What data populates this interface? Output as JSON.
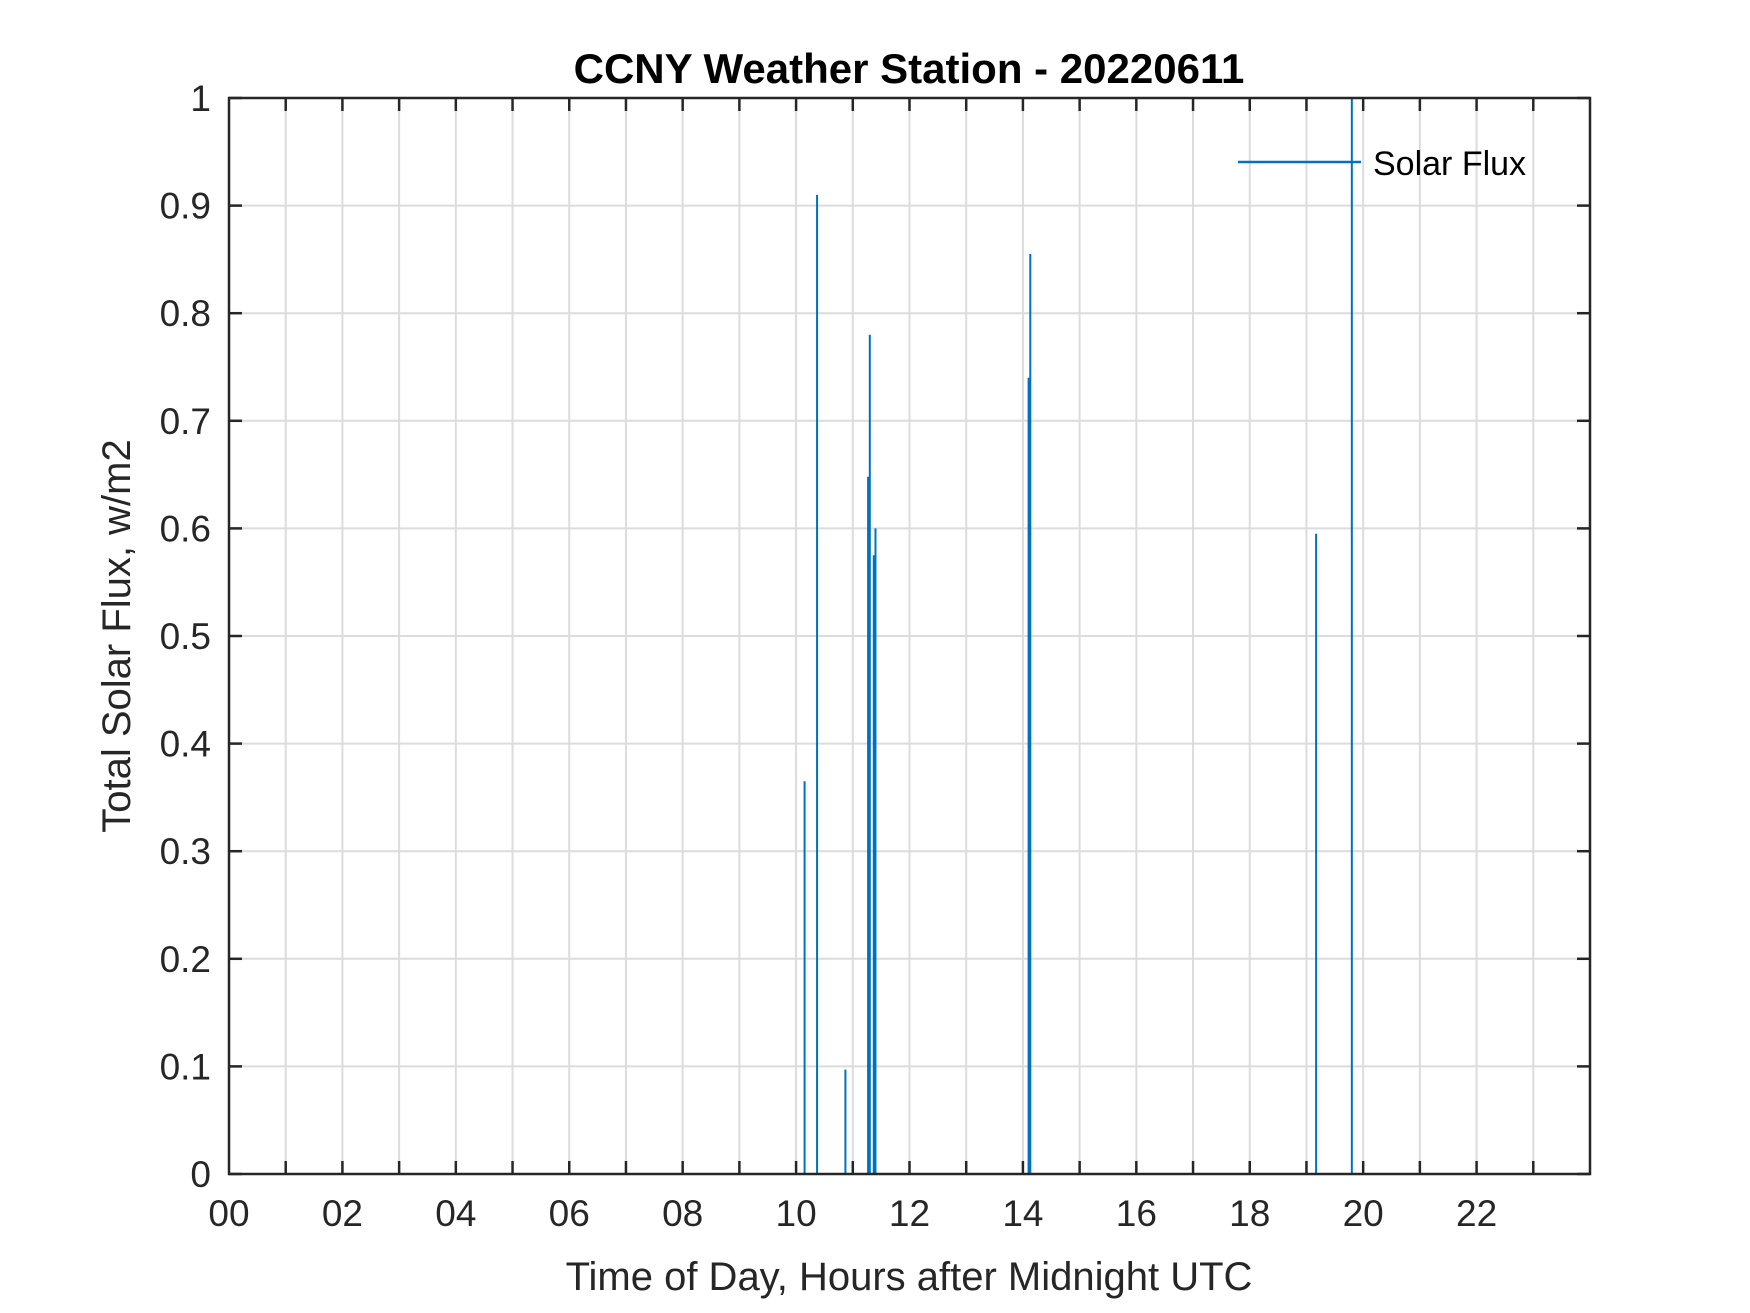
{
  "chart_data": {
    "type": "line",
    "title": "CCNY Weather Station - 20220611",
    "xlabel": "Time of Day, Hours after Midnight UTC",
    "ylabel": "Total Solar Flux, w/m2",
    "xlim": [
      0,
      24
    ],
    "ylim": [
      0,
      1
    ],
    "x_ticks": [
      0,
      2,
      4,
      6,
      8,
      10,
      12,
      14,
      16,
      18,
      20,
      22
    ],
    "x_tick_labels": [
      "00",
      "02",
      "04",
      "06",
      "08",
      "10",
      "12",
      "14",
      "16",
      "18",
      "20",
      "22"
    ],
    "y_ticks": [
      0,
      0.1,
      0.2,
      0.3,
      0.4,
      0.5,
      0.6,
      0.7,
      0.8,
      0.9,
      1
    ],
    "y_tick_labels": [
      "0",
      "0.1",
      "0.2",
      "0.3",
      "0.4",
      "0.5",
      "0.6",
      "0.7",
      "0.8",
      "0.9",
      "1"
    ],
    "grid": true,
    "legend_position": "top-right",
    "series": [
      {
        "name": "Solar Flux",
        "color": "#0072BD",
        "points": [
          {
            "x": 10.15,
            "y": 0.365
          },
          {
            "x": 10.37,
            "y": 0.91
          },
          {
            "x": 10.87,
            "y": 0.097
          },
          {
            "x": 11.27,
            "y": 0.648
          },
          {
            "x": 11.3,
            "y": 0.78
          },
          {
            "x": 11.37,
            "y": 0.575
          },
          {
            "x": 11.4,
            "y": 0.6
          },
          {
            "x": 14.1,
            "y": 0.74
          },
          {
            "x": 14.13,
            "y": 0.855
          },
          {
            "x": 19.17,
            "y": 0.595
          },
          {
            "x": 19.8,
            "y": 1.0
          }
        ]
      }
    ]
  }
}
